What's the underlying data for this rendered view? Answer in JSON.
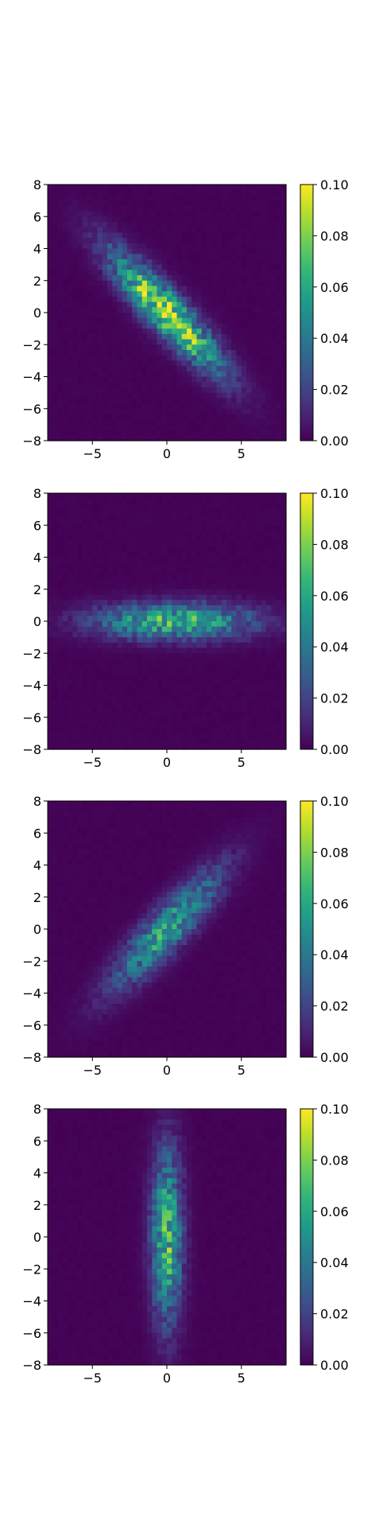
{
  "chart_data": [
    {
      "type": "heatmap",
      "xlim": [
        -8,
        8
      ],
      "ylim": [
        -8,
        8
      ],
      "xticks": [
        -5,
        0,
        5
      ],
      "xtick_labels": [
        "−5",
        "0",
        "5"
      ],
      "yticks": [
        -8,
        -6,
        -4,
        -2,
        0,
        2,
        4,
        6,
        8
      ],
      "ytick_labels": [
        "−8",
        "−6",
        "−4",
        "−2",
        "0",
        "2",
        "4",
        "6",
        "8"
      ],
      "colorbar": {
        "range": [
          0,
          0.1
        ],
        "ticks": [
          0,
          0.02,
          0.04,
          0.06,
          0.08,
          0.1
        ],
        "tick_labels": [
          "0.00",
          "0.02",
          "0.04",
          "0.06",
          "0.08",
          "0.10"
        ],
        "colormap": "viridis"
      },
      "distribution": {
        "center": [
          0,
          0
        ],
        "major_sigma": 3.4,
        "minor_sigma": 0.8,
        "angle_deg": -45,
        "peak": 0.09
      }
    },
    {
      "type": "heatmap",
      "xlim": [
        -8,
        8
      ],
      "ylim": [
        -8,
        8
      ],
      "xticks": [
        -5,
        0,
        5
      ],
      "xtick_labels": [
        "−5",
        "0",
        "5"
      ],
      "yticks": [
        -8,
        -6,
        -4,
        -2,
        0,
        2,
        4,
        6,
        8
      ],
      "ytick_labels": [
        "−8",
        "−6",
        "−4",
        "−2",
        "0",
        "2",
        "4",
        "6",
        "8"
      ],
      "colorbar": {
        "range": [
          0,
          0.1
        ],
        "ticks": [
          0,
          0.02,
          0.04,
          0.06,
          0.08,
          0.1
        ],
        "tick_labels": [
          "0.00",
          "0.02",
          "0.04",
          "0.06",
          "0.08",
          "0.10"
        ],
        "colormap": "viridis"
      },
      "distribution": {
        "center": [
          0.5,
          0
        ],
        "major_sigma": 3.6,
        "minor_sigma": 0.75,
        "angle_deg": 0,
        "peak": 0.065
      }
    },
    {
      "type": "heatmap",
      "xlim": [
        -8,
        8
      ],
      "ylim": [
        -8,
        8
      ],
      "xticks": [
        -5,
        0,
        5
      ],
      "xtick_labels": [
        "−5",
        "0",
        "5"
      ],
      "yticks": [
        -8,
        -6,
        -4,
        -2,
        0,
        2,
        4,
        6,
        8
      ],
      "ytick_labels": [
        "−8",
        "−6",
        "−4",
        "−2",
        "0",
        "2",
        "4",
        "6",
        "8"
      ],
      "colorbar": {
        "range": [
          0,
          0.1
        ],
        "ticks": [
          0,
          0.02,
          0.04,
          0.06,
          0.08,
          0.1
        ],
        "tick_labels": [
          "0.00",
          "0.02",
          "0.04",
          "0.06",
          "0.08",
          "0.10"
        ],
        "colormap": "viridis"
      },
      "distribution": {
        "center": [
          0,
          0
        ],
        "major_sigma": 3.4,
        "minor_sigma": 0.85,
        "angle_deg": 45,
        "peak": 0.055
      }
    },
    {
      "type": "heatmap",
      "xlim": [
        -8,
        8
      ],
      "ylim": [
        -8,
        8
      ],
      "xticks": [
        -5,
        0,
        5
      ],
      "xtick_labels": [
        "−5",
        "0",
        "5"
      ],
      "yticks": [
        -8,
        -6,
        -4,
        -2,
        0,
        2,
        4,
        6,
        8
      ],
      "ytick_labels": [
        "−8",
        "−6",
        "−4",
        "−2",
        "0",
        "2",
        "4",
        "6",
        "8"
      ],
      "colorbar": {
        "range": [
          0,
          0.1
        ],
        "ticks": [
          0,
          0.02,
          0.04,
          0.06,
          0.08,
          0.1
        ],
        "tick_labels": [
          "0.00",
          "0.02",
          "0.04",
          "0.06",
          "0.08",
          "0.10"
        ],
        "colormap": "viridis"
      },
      "distribution": {
        "center": [
          0,
          0
        ],
        "major_sigma": 3.6,
        "minor_sigma": 0.7,
        "angle_deg": 90,
        "peak": 0.065
      }
    }
  ]
}
